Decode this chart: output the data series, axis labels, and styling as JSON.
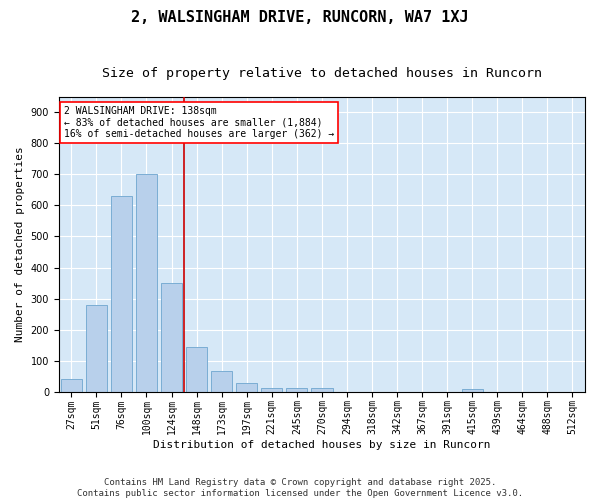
{
  "title": "2, WALSINGHAM DRIVE, RUNCORN, WA7 1XJ",
  "subtitle": "Size of property relative to detached houses in Runcorn",
  "xlabel": "Distribution of detached houses by size in Runcorn",
  "ylabel": "Number of detached properties",
  "bar_color": "#b8d0eb",
  "bar_edge_color": "#7aadd4",
  "background_color": "#d6e8f7",
  "gridcolor": "#ffffff",
  "fig_background": "#ffffff",
  "categories": [
    "27sqm",
    "51sqm",
    "76sqm",
    "100sqm",
    "124sqm",
    "148sqm",
    "173sqm",
    "197sqm",
    "221sqm",
    "245sqm",
    "270sqm",
    "294sqm",
    "318sqm",
    "342sqm",
    "367sqm",
    "391sqm",
    "415sqm",
    "439sqm",
    "464sqm",
    "488sqm",
    "512sqm"
  ],
  "values": [
    40,
    280,
    630,
    700,
    350,
    145,
    65,
    28,
    13,
    11,
    11,
    0,
    0,
    0,
    0,
    0,
    8,
    0,
    0,
    0,
    0
  ],
  "ylim": [
    0,
    950
  ],
  "yticks": [
    0,
    100,
    200,
    300,
    400,
    500,
    600,
    700,
    800,
    900
  ],
  "vline_x": 4.5,
  "vline_color": "#cc0000",
  "annotation_text": "2 WALSINGHAM DRIVE: 138sqm\n← 83% of detached houses are smaller (1,884)\n16% of semi-detached houses are larger (362) →",
  "footer_text": "Contains HM Land Registry data © Crown copyright and database right 2025.\nContains public sector information licensed under the Open Government Licence v3.0.",
  "title_fontsize": 11,
  "subtitle_fontsize": 9.5,
  "label_fontsize": 8,
  "tick_fontsize": 7,
  "annotation_fontsize": 7,
  "footer_fontsize": 6.5
}
